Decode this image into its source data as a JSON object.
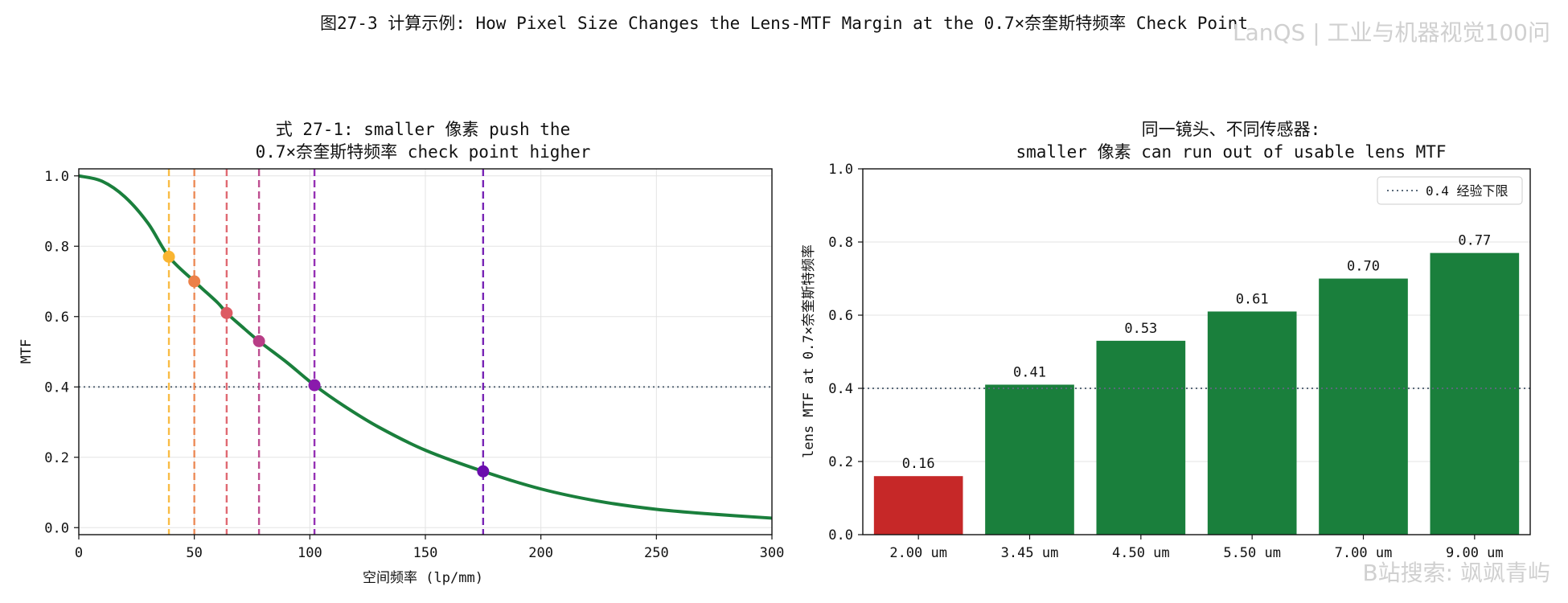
{
  "figure": {
    "title": "图27-3  计算示例: How Pixel Size Changes the Lens-MTF Margin at the 0.7×奈奎斯特频率 Check Point",
    "watermark_top": "LanQS | 工业与机器视觉100问",
    "watermark_bottom": "B站搜索: 飒飒青屿"
  },
  "colors": {
    "curve": "#1a7f3c",
    "bar_ok": "#1a7f3c",
    "bar_bad": "#c62828",
    "threshold": "#5a6a7a",
    "markers": [
      "#f9b532",
      "#ec8048",
      "#dd5a63",
      "#b83d86",
      "#8a1aac",
      "#6a0dad"
    ]
  },
  "chart_data": [
    {
      "type": "line",
      "title_line1": "式 27-1: smaller 像素 push the",
      "title_line2": "0.7×奈奎斯特频率 check point higher",
      "xlabel": "空间频率 (lp/mm)",
      "ylabel": "MTF",
      "xlim": [
        0,
        300
      ],
      "ylim": [
        -0.02,
        1.02
      ],
      "xticks": [
        0,
        50,
        100,
        150,
        200,
        250,
        300
      ],
      "yticks": [
        0.0,
        0.2,
        0.4,
        0.6,
        0.8,
        1.0
      ],
      "grid": true,
      "curve": {
        "x": [
          0,
          10,
          20,
          30,
          39,
          50,
          60,
          64,
          70,
          78,
          90,
          102,
          115,
          130,
          150,
          175,
          200,
          225,
          250,
          275,
          300
        ],
        "y": [
          1.0,
          0.985,
          0.94,
          0.865,
          0.77,
          0.7,
          0.64,
          0.61,
          0.575,
          0.53,
          0.47,
          0.405,
          0.345,
          0.285,
          0.22,
          0.16,
          0.11,
          0.075,
          0.052,
          0.038,
          0.027
        ]
      },
      "threshold": 0.4,
      "check_points": [
        {
          "x": 39.0,
          "y": 0.77
        },
        {
          "x": 50.0,
          "y": 0.7
        },
        {
          "x": 64.0,
          "y": 0.61
        },
        {
          "x": 78.0,
          "y": 0.53
        },
        {
          "x": 102.0,
          "y": 0.405
        },
        {
          "x": 175.0,
          "y": 0.16
        }
      ]
    },
    {
      "type": "bar",
      "title_line1": "同一镜头、不同传感器:",
      "title_line2": "smaller 像素 can run out of usable lens MTF",
      "ylabel": "lens MTF at 0.7×奈奎斯特频率",
      "categories": [
        "2.00 um",
        "3.45 um",
        "4.50 um",
        "5.50 um",
        "7.00 um",
        "9.00 um"
      ],
      "values": [
        0.16,
        0.41,
        0.53,
        0.61,
        0.7,
        0.77
      ],
      "value_labels": [
        "0.16",
        "0.41",
        "0.53",
        "0.61",
        "0.70",
        "0.77"
      ],
      "ylim": [
        0,
        1.0
      ],
      "yticks": [
        0.0,
        0.2,
        0.4,
        0.6,
        0.8,
        1.0
      ],
      "grid": true,
      "threshold": 0.4,
      "legend": {
        "label": "0.4 经验下限",
        "position": "top-right"
      }
    }
  ]
}
